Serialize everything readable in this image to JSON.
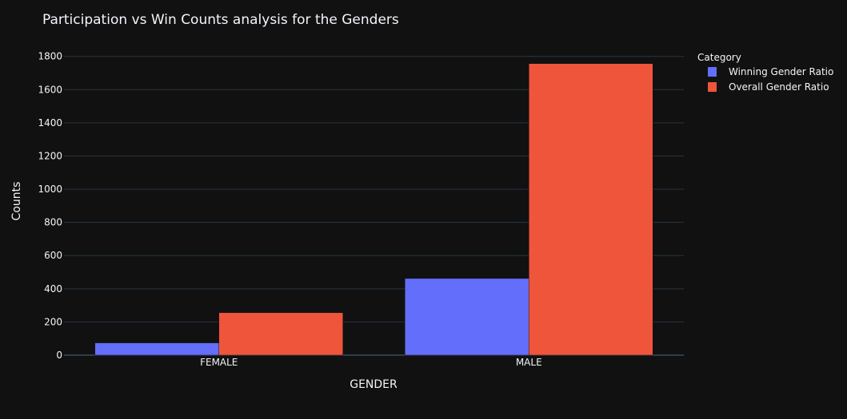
{
  "chart_data": {
    "type": "bar",
    "title": "Participation vs Win Counts analysis for the Genders",
    "xlabel": "GENDER",
    "ylabel": "Counts",
    "categories": [
      "FEMALE",
      "MALE"
    ],
    "series": [
      {
        "name": "Winning Gender Ratio",
        "values": [
          74,
          462
        ],
        "color": "#636efa"
      },
      {
        "name": "Overall Gender Ratio",
        "values": [
          256,
          1757
        ],
        "color": "#ef553b"
      }
    ],
    "ylim": [
      0,
      1890
    ],
    "yticks": [
      0,
      200,
      400,
      600,
      800,
      1000,
      1200,
      1400,
      1600,
      1800
    ],
    "legend": {
      "title": "Category",
      "placement": "top-right"
    },
    "grid": true,
    "background": "#111111"
  }
}
